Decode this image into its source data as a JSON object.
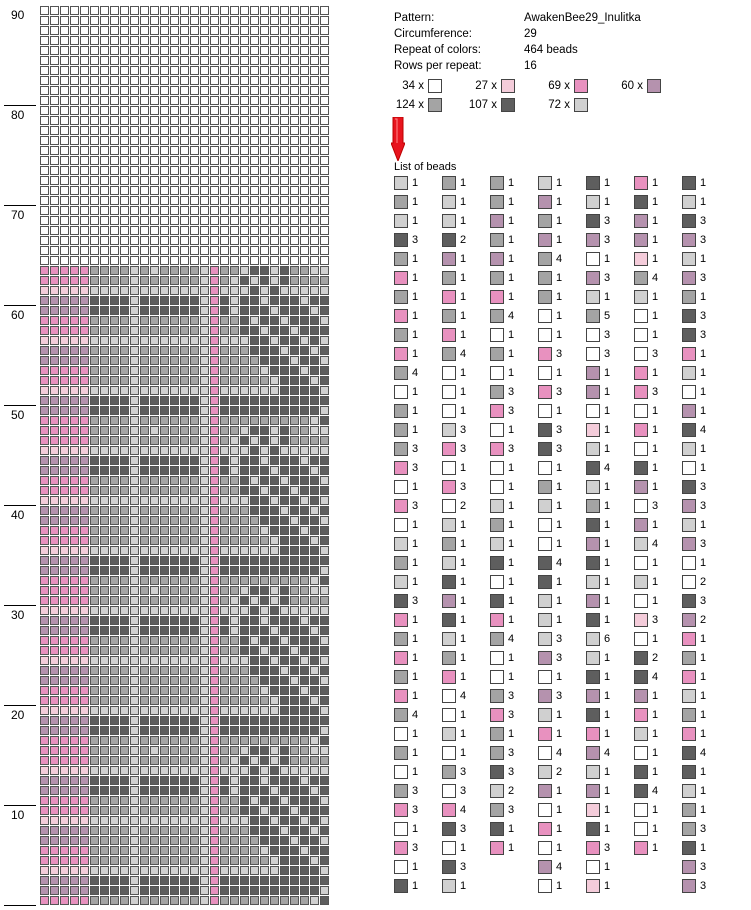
{
  "ruler": {
    "labels": [
      "90",
      "80",
      "70",
      "60",
      "50",
      "40",
      "30",
      "20",
      "10"
    ]
  },
  "info": {
    "pattern_label": "Pattern:",
    "pattern_value": "AwakenBee29_Inulitka",
    "circ_label": "Circumference:",
    "circ_value": "29",
    "repeat_label": "Repeat of colors:",
    "repeat_value": "464 beads",
    "rows_label": "Rows per repeat:",
    "rows_value": "16"
  },
  "colors": {
    "W": "#ffffff",
    "P": "#f4ccda",
    "L": "#d0d0d0",
    "K": "#e891bf",
    "M": "#a4a4a4",
    "D": "#5e5e5e",
    "V": "#b592ae"
  },
  "summary": [
    {
      "count": "34 x",
      "color": "W"
    },
    {
      "count": "27 x",
      "color": "P"
    },
    {
      "count": "69 x",
      "color": "K"
    },
    {
      "count": "60 x",
      "color": "V"
    },
    {
      "count": "124 x",
      "color": "M"
    },
    {
      "count": "107 x",
      "color": "D"
    },
    {
      "count": "72 x",
      "color": "L"
    }
  ],
  "list_title": "List of beads",
  "bead_columns": [
    [
      [
        "L",
        "1"
      ],
      [
        "M",
        "1"
      ],
      [
        "L",
        "1"
      ],
      [
        "D",
        "3"
      ],
      [
        "M",
        "1"
      ],
      [
        "K",
        "1"
      ],
      [
        "M",
        "1"
      ],
      [
        "K",
        "1"
      ],
      [
        "M",
        "1"
      ],
      [
        "K",
        "1"
      ],
      [
        "M",
        "4"
      ],
      [
        "W",
        "1"
      ],
      [
        "M",
        "1"
      ],
      [
        "M",
        "1"
      ],
      [
        "M",
        "3"
      ],
      [
        "K",
        "3"
      ],
      [
        "W",
        "1"
      ],
      [
        "K",
        "3"
      ],
      [
        "W",
        "1"
      ],
      [
        "L",
        "1"
      ],
      [
        "M",
        "1"
      ],
      [
        "L",
        "1"
      ],
      [
        "D",
        "3"
      ],
      [
        "K",
        "1"
      ],
      [
        "M",
        "1"
      ],
      [
        "K",
        "1"
      ],
      [
        "M",
        "1"
      ],
      [
        "K",
        "1"
      ],
      [
        "M",
        "4"
      ],
      [
        "W",
        "1"
      ],
      [
        "M",
        "1"
      ],
      [
        "W",
        "1"
      ],
      [
        "M",
        "3"
      ],
      [
        "K",
        "3"
      ],
      [
        "W",
        "1"
      ],
      [
        "K",
        "3"
      ],
      [
        "W",
        "1"
      ],
      [
        "D",
        "1"
      ]
    ],
    [
      [
        "M",
        "1"
      ],
      [
        "L",
        "1"
      ],
      [
        "L",
        "1"
      ],
      [
        "D",
        "2"
      ],
      [
        "V",
        "1"
      ],
      [
        "M",
        "1"
      ],
      [
        "K",
        "1"
      ],
      [
        "M",
        "1"
      ],
      [
        "K",
        "1"
      ],
      [
        "M",
        "4"
      ],
      [
        "W",
        "1"
      ],
      [
        "W",
        "1"
      ],
      [
        "W",
        "1"
      ],
      [
        "L",
        "3"
      ],
      [
        "K",
        "3"
      ],
      [
        "W",
        "1"
      ],
      [
        "K",
        "3"
      ],
      [
        "W",
        "2"
      ],
      [
        "L",
        "1"
      ],
      [
        "M",
        "1"
      ],
      [
        "L",
        "1"
      ],
      [
        "D",
        "1"
      ],
      [
        "V",
        "1"
      ],
      [
        "D",
        "1"
      ],
      [
        "L",
        "1"
      ],
      [
        "M",
        "1"
      ],
      [
        "K",
        "1"
      ],
      [
        "W",
        "4"
      ],
      [
        "W",
        "1"
      ],
      [
        "L",
        "1"
      ],
      [
        "W",
        "1"
      ],
      [
        "M",
        "3"
      ],
      [
        "W",
        "3"
      ],
      [
        "K",
        "4"
      ],
      [
        "D",
        "3"
      ],
      [
        "W",
        "1"
      ],
      [
        "D",
        "3"
      ],
      [
        "L",
        "1"
      ]
    ],
    [
      [
        "M",
        "1"
      ],
      [
        "M",
        "1"
      ],
      [
        "V",
        "1"
      ],
      [
        "M",
        "1"
      ],
      [
        "V",
        "1"
      ],
      [
        "M",
        "1"
      ],
      [
        "K",
        "1"
      ],
      [
        "M",
        "4"
      ],
      [
        "W",
        "1"
      ],
      [
        "M",
        "1"
      ],
      [
        "W",
        "1"
      ],
      [
        "M",
        "3"
      ],
      [
        "K",
        "3"
      ],
      [
        "W",
        "1"
      ],
      [
        "K",
        "3"
      ],
      [
        "W",
        "1"
      ],
      [
        "W",
        "1"
      ],
      [
        "L",
        "1"
      ],
      [
        "M",
        "1"
      ],
      [
        "L",
        "1"
      ],
      [
        "D",
        "1"
      ],
      [
        "W",
        "1"
      ],
      [
        "D",
        "1"
      ],
      [
        "K",
        "1"
      ],
      [
        "M",
        "4"
      ],
      [
        "W",
        "1"
      ],
      [
        "W",
        "1"
      ],
      [
        "M",
        "3"
      ],
      [
        "K",
        "3"
      ],
      [
        "M",
        "1"
      ],
      [
        "M",
        "3"
      ],
      [
        "D",
        "3"
      ],
      [
        "L",
        "2"
      ],
      [
        "M",
        "3"
      ],
      [
        "D",
        "1"
      ],
      [
        "K",
        "1"
      ]
    ],
    [
      [
        "L",
        "1"
      ],
      [
        "V",
        "1"
      ],
      [
        "M",
        "1"
      ],
      [
        "V",
        "1"
      ],
      [
        "M",
        "4"
      ],
      [
        "M",
        "1"
      ],
      [
        "M",
        "1"
      ],
      [
        "W",
        "1"
      ],
      [
        "W",
        "1"
      ],
      [
        "K",
        "3"
      ],
      [
        "W",
        "1"
      ],
      [
        "K",
        "3"
      ],
      [
        "W",
        "1"
      ],
      [
        "D",
        "3"
      ],
      [
        "D",
        "3"
      ],
      [
        "W",
        "1"
      ],
      [
        "M",
        "1"
      ],
      [
        "L",
        "1"
      ],
      [
        "W",
        "1"
      ],
      [
        "W",
        "1"
      ],
      [
        "D",
        "4"
      ],
      [
        "D",
        "1"
      ],
      [
        "L",
        "1"
      ],
      [
        "L",
        "1"
      ],
      [
        "L",
        "3"
      ],
      [
        "V",
        "3"
      ],
      [
        "W",
        "1"
      ],
      [
        "V",
        "3"
      ],
      [
        "L",
        "1"
      ],
      [
        "K",
        "1"
      ],
      [
        "W",
        "4"
      ],
      [
        "L",
        "2"
      ],
      [
        "V",
        "1"
      ],
      [
        "W",
        "1"
      ],
      [
        "K",
        "1"
      ],
      [
        "W",
        "1"
      ],
      [
        "V",
        "4"
      ],
      [
        "W",
        "1"
      ]
    ],
    [
      [
        "D",
        "1"
      ],
      [
        "L",
        "1"
      ],
      [
        "D",
        "3"
      ],
      [
        "V",
        "3"
      ],
      [
        "W",
        "1"
      ],
      [
        "V",
        "3"
      ],
      [
        "L",
        "1"
      ],
      [
        "M",
        "5"
      ],
      [
        "W",
        "3"
      ],
      [
        "W",
        "3"
      ],
      [
        "V",
        "1"
      ],
      [
        "V",
        "1"
      ],
      [
        "W",
        "1"
      ],
      [
        "P",
        "1"
      ],
      [
        "L",
        "1"
      ],
      [
        "D",
        "4"
      ],
      [
        "L",
        "1"
      ],
      [
        "M",
        "1"
      ],
      [
        "D",
        "1"
      ],
      [
        "V",
        "1"
      ],
      [
        "D",
        "1"
      ],
      [
        "L",
        "1"
      ],
      [
        "V",
        "1"
      ],
      [
        "D",
        "1"
      ],
      [
        "L",
        "6"
      ],
      [
        "L",
        "1"
      ],
      [
        "D",
        "1"
      ],
      [
        "V",
        "1"
      ],
      [
        "D",
        "1"
      ],
      [
        "K",
        "1"
      ],
      [
        "V",
        "4"
      ],
      [
        "L",
        "1"
      ],
      [
        "V",
        "1"
      ],
      [
        "P",
        "1"
      ],
      [
        "D",
        "1"
      ],
      [
        "K",
        "3"
      ],
      [
        "W",
        "1"
      ],
      [
        "P",
        "1"
      ],
      [
        "L",
        "6"
      ]
    ],
    [
      [
        "K",
        "1"
      ],
      [
        "D",
        "1"
      ],
      [
        "V",
        "1"
      ],
      [
        "V",
        "1"
      ],
      [
        "P",
        "1"
      ],
      [
        "M",
        "4"
      ],
      [
        "L",
        "1"
      ],
      [
        "W",
        "1"
      ],
      [
        "W",
        "1"
      ],
      [
        "W",
        "3"
      ],
      [
        "K",
        "1"
      ],
      [
        "K",
        "3"
      ],
      [
        "W",
        "1"
      ],
      [
        "K",
        "1"
      ],
      [
        "W",
        "1"
      ],
      [
        "D",
        "1"
      ],
      [
        "V",
        "1"
      ],
      [
        "W",
        "3"
      ],
      [
        "V",
        "1"
      ],
      [
        "L",
        "4"
      ],
      [
        "W",
        "1"
      ],
      [
        "L",
        "1"
      ],
      [
        "W",
        "1"
      ],
      [
        "P",
        "3"
      ],
      [
        "W",
        "1"
      ],
      [
        "D",
        "2"
      ],
      [
        "D",
        "4"
      ],
      [
        "V",
        "1"
      ],
      [
        "K",
        "1"
      ],
      [
        "L",
        "1"
      ],
      [
        "W",
        "1"
      ],
      [
        "D",
        "1"
      ],
      [
        "D",
        "4"
      ],
      [
        "W",
        "1"
      ],
      [
        "W",
        "1"
      ],
      [
        "K",
        "1"
      ]
    ],
    [
      [
        "D",
        "1"
      ],
      [
        "L",
        "1"
      ],
      [
        "D",
        "3"
      ],
      [
        "V",
        "3"
      ],
      [
        "L",
        "1"
      ],
      [
        "V",
        "3"
      ],
      [
        "M",
        "1"
      ],
      [
        "D",
        "3"
      ],
      [
        "D",
        "3"
      ],
      [
        "K",
        "1"
      ],
      [
        "L",
        "1"
      ],
      [
        "W",
        "1"
      ],
      [
        "V",
        "1"
      ],
      [
        "D",
        "4"
      ],
      [
        "L",
        "1"
      ],
      [
        "W",
        "1"
      ],
      [
        "D",
        "3"
      ],
      [
        "V",
        "3"
      ],
      [
        "L",
        "1"
      ],
      [
        "V",
        "3"
      ],
      [
        "W",
        "1"
      ],
      [
        "W",
        "2"
      ],
      [
        "D",
        "3"
      ],
      [
        "V",
        "2"
      ],
      [
        "K",
        "1"
      ],
      [
        "M",
        "1"
      ],
      [
        "K",
        "1"
      ],
      [
        "L",
        "1"
      ],
      [
        "M",
        "1"
      ],
      [
        "K",
        "1"
      ],
      [
        "D",
        "4"
      ],
      [
        "D",
        "1"
      ],
      [
        "L",
        "1"
      ],
      [
        "M",
        "1"
      ],
      [
        "M",
        "3"
      ],
      [
        "D",
        "1"
      ],
      [
        "V",
        "3"
      ],
      [
        "V",
        "3"
      ]
    ]
  ]
}
